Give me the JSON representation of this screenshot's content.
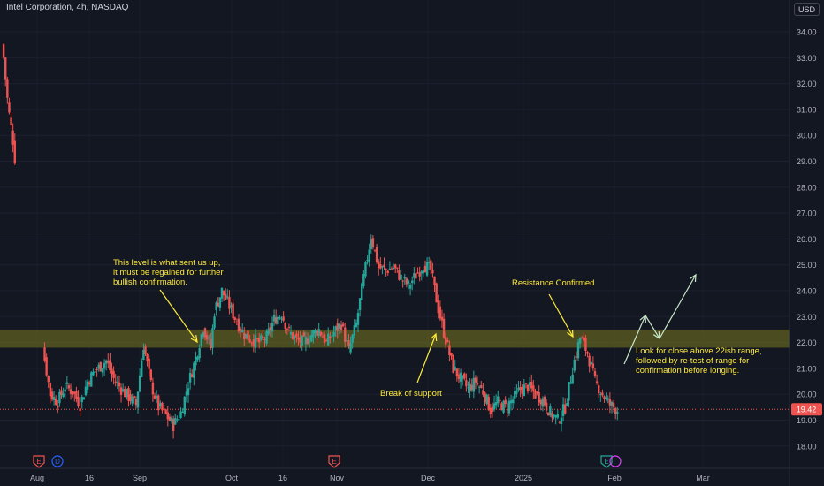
{
  "header": {
    "title": "Intel Corporation, 4h, NASDAQ",
    "currency": "USD"
  },
  "colors": {
    "background": "#131722",
    "up": "#26a69a",
    "down": "#ef5350",
    "axis_text": "#b2b5be",
    "annotation_text": "#ffeb3b",
    "zone_fill": "#7a7a1f",
    "price_line": "#ef5350",
    "projection": "#c8e6c9"
  },
  "chart_data": {
    "type": "candlestick",
    "title": "Intel Corporation, 4h, NASDAQ",
    "ylim": [
      17.4,
      35.0
    ],
    "y_ticks": [
      "34.00",
      "33.00",
      "32.00",
      "31.00",
      "30.00",
      "29.00",
      "28.00",
      "27.00",
      "26.00",
      "25.00",
      "24.00",
      "23.00",
      "22.00",
      "21.00",
      "20.00",
      "19.00",
      "18.00"
    ],
    "x_ticks": [
      "Aug",
      "16",
      "Sep",
      "Oct",
      "16",
      "Nov",
      "Dec",
      "2025",
      "Feb",
      "Mar"
    ],
    "last_price": "19.42",
    "zone": [
      21.8,
      22.5
    ],
    "segments": [
      {
        "points": [
          [
            0,
            33.5
          ],
          [
            0.5,
            33.0
          ],
          [
            1,
            32.2
          ],
          [
            1.5,
            31.4
          ],
          [
            2,
            30.8
          ],
          [
            2.5,
            30.3
          ],
          [
            3,
            29.8
          ],
          [
            3.5,
            29.1
          ]
        ]
      },
      {
        "points": [
          [
            11,
            21.8
          ],
          [
            13,
            20.0
          ],
          [
            15,
            19.7
          ],
          [
            17,
            20.3
          ],
          [
            19,
            20.1
          ],
          [
            21,
            19.6
          ],
          [
            23,
            20.5
          ],
          [
            25,
            20.9
          ],
          [
            28,
            21.3
          ],
          [
            30,
            20.6
          ],
          [
            32,
            20.2
          ],
          [
            34,
            19.9
          ],
          [
            36,
            19.6
          ],
          [
            38,
            21.9
          ],
          [
            40,
            20.4
          ],
          [
            42,
            19.5
          ],
          [
            44,
            19.2
          ],
          [
            46,
            18.8
          ],
          [
            48,
            19.3
          ],
          [
            50,
            20.4
          ],
          [
            52,
            21.4
          ],
          [
            54,
            22.6
          ],
          [
            56,
            21.8
          ],
          [
            57,
            23.2
          ],
          [
            59,
            24.0
          ],
          [
            61,
            23.4
          ],
          [
            63,
            22.8
          ],
          [
            65,
            22.3
          ],
          [
            67,
            22.1
          ],
          [
            69,
            22.0
          ],
          [
            71,
            22.2
          ],
          [
            73,
            22.9
          ],
          [
            75,
            23.1
          ],
          [
            77,
            22.4
          ],
          [
            79,
            22.1
          ],
          [
            81,
            22.0
          ],
          [
            83,
            22.3
          ],
          [
            85,
            22.5
          ],
          [
            87,
            22.0
          ],
          [
            89,
            22.4
          ],
          [
            91,
            22.7
          ],
          [
            93,
            21.7
          ],
          [
            95,
            22.7
          ],
          [
            97,
            24.5
          ],
          [
            99,
            26.1
          ],
          [
            101,
            24.9
          ],
          [
            103,
            24.8
          ],
          [
            105,
            24.9
          ],
          [
            107,
            24.5
          ],
          [
            109,
            24.2
          ],
          [
            111,
            24.6
          ],
          [
            113,
            25.0
          ],
          [
            115,
            24.8
          ],
          [
            117,
            23.3
          ],
          [
            119,
            22.1
          ],
          [
            121,
            21.0
          ],
          [
            123,
            20.6
          ],
          [
            125,
            20.2
          ],
          [
            127,
            20.5
          ],
          [
            129,
            20.1
          ],
          [
            131,
            19.4
          ],
          [
            133,
            19.7
          ],
          [
            135,
            19.5
          ],
          [
            137,
            19.8
          ],
          [
            139,
            20.2
          ],
          [
            141,
            20.3
          ],
          [
            143,
            20.0
          ],
          [
            145,
            19.8
          ],
          [
            147,
            19.3
          ],
          [
            149,
            19.0
          ],
          [
            151,
            19.5
          ],
          [
            153,
            21.0
          ],
          [
            155,
            22.2
          ],
          [
            157,
            21.6
          ],
          [
            159,
            20.5
          ],
          [
            161,
            20.0
          ],
          [
            163,
            19.6
          ],
          [
            165,
            19.4
          ]
        ]
      }
    ],
    "annotations": [
      {
        "text": "This level is what sent us up, it must be regained for further bullish confirmation."
      },
      {
        "text": "Break of support"
      },
      {
        "text": "Resistance Confirmed"
      },
      {
        "text": "Look for close above 22ish range, followed by re-test of range for confirmation before longing."
      }
    ],
    "event_markers": [
      "E",
      "D",
      "E",
      "E"
    ]
  }
}
